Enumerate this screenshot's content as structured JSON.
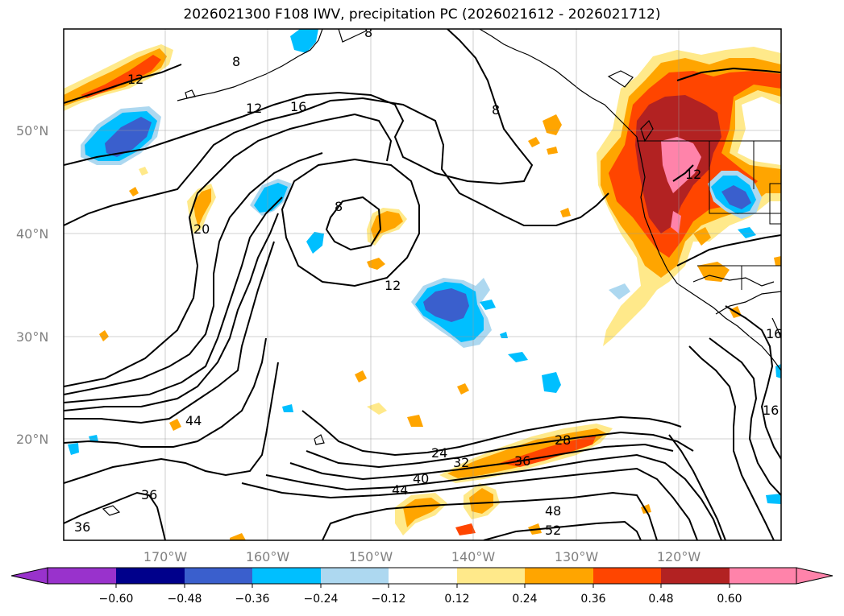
{
  "title": "2026021300 F108 IWV, precipitation PC (2026021612 - 2026021712)",
  "lat_labels": [
    "50°N",
    "40°N",
    "30°N",
    "20°N"
  ],
  "lon_labels": [
    "170°W",
    "160°W",
    "150°W",
    "140°W",
    "130°W",
    "120°W"
  ],
  "contour_labels": [
    "8",
    "8",
    "8",
    "12",
    "12",
    "16",
    "12",
    "20",
    "44",
    "36",
    "36",
    "24",
    "32",
    "36",
    "28",
    "40",
    "44",
    "48",
    "52",
    "8",
    "16",
    "16",
    "12"
  ],
  "colorbar": {
    "labels": [
      "−0.60",
      "−0.48",
      "−0.36",
      "−0.24",
      "−0.12",
      "0.12",
      "0.24",
      "0.36",
      "0.48",
      "0.60"
    ],
    "colors": [
      "#9932cc",
      "#00008b",
      "#3a5fcd",
      "#00bfff",
      "#add8f0",
      "#ffffff",
      "#ffe98a",
      "#ffa500",
      "#ff4500",
      "#b22222",
      "#ff83aa"
    ]
  }
}
